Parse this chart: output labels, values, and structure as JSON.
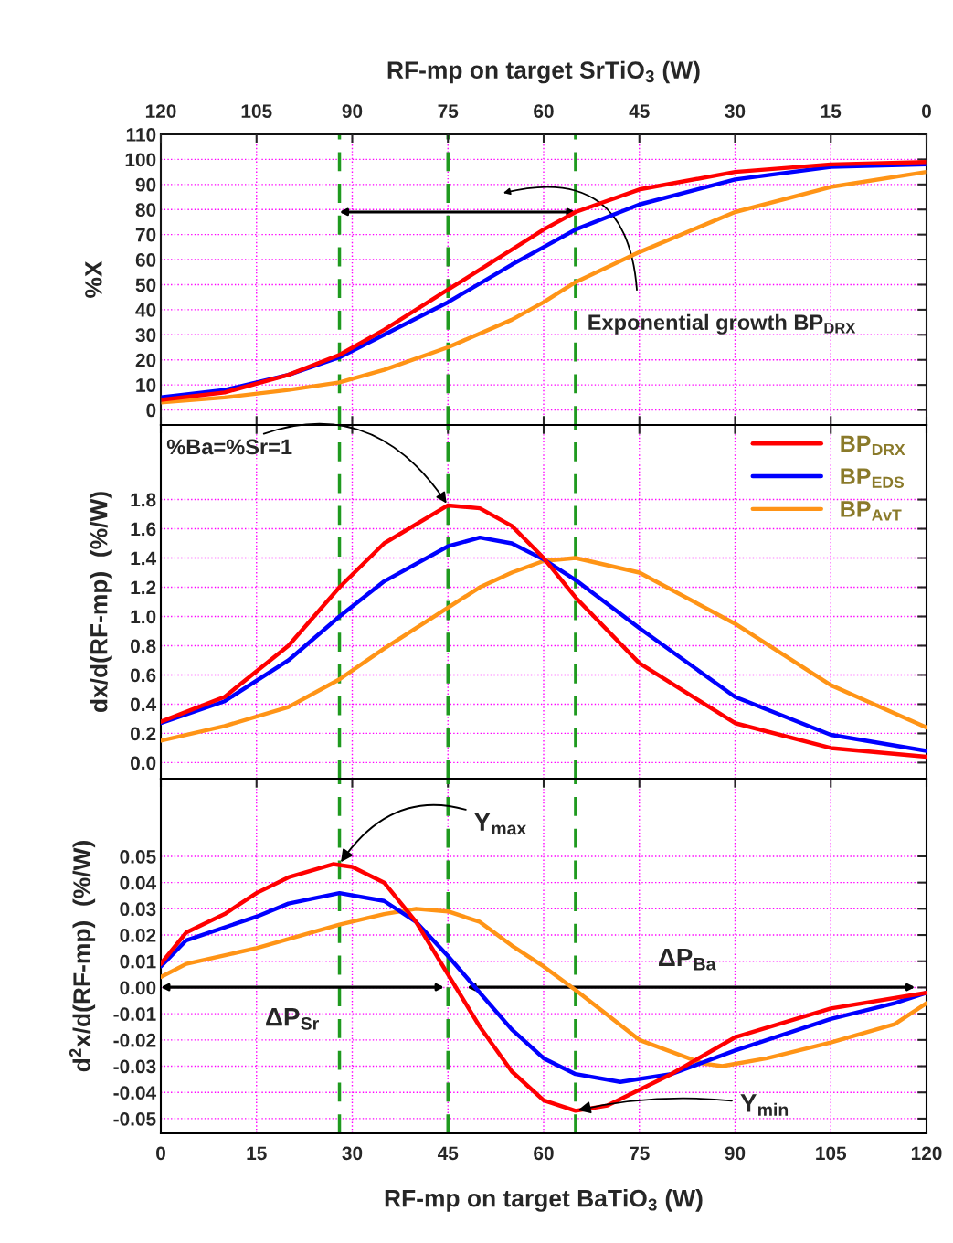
{
  "chart_data": [
    {
      "type": "line",
      "ylabel": "%X",
      "x2label": "RF-mp on target SrTiO$_{3}$ (W)",
      "x": [
        0,
        10,
        20,
        28,
        35,
        45,
        55,
        60,
        65,
        75,
        90,
        105,
        120
      ],
      "series": [
        {
          "color": "#ff0000",
          "values": [
            4,
            7,
            14,
            22,
            32,
            48,
            64,
            72,
            79,
            88,
            95,
            98,
            99
          ]
        },
        {
          "color": "#0000ff",
          "values": [
            5,
            8,
            14,
            21,
            30,
            43,
            58,
            65,
            72,
            82,
            92,
            97,
            98
          ]
        },
        {
          "color": "#ff9416",
          "values": [
            3,
            5,
            8,
            11,
            16,
            25,
            36,
            43,
            51,
            63,
            79,
            89,
            95
          ]
        }
      ],
      "xlim": [
        0,
        120
      ],
      "xticks": [
        0,
        15,
        30,
        45,
        60,
        75,
        90,
        105,
        120
      ],
      "x2lim": [
        120,
        0
      ],
      "x2ticks": [
        120,
        105,
        90,
        75,
        60,
        45,
        30,
        15,
        0
      ],
      "ylim": [
        -6,
        110
      ],
      "yticks": [
        0,
        10,
        20,
        30,
        40,
        50,
        60,
        70,
        80,
        90,
        100,
        110
      ],
      "tick_labels": "y",
      "grid": true,
      "legend": false,
      "ref_lines": [
        {
          "axis": "x",
          "value": 28,
          "color": "#1f9a1f",
          "line_style": "dashed"
        },
        {
          "axis": "x",
          "value": 45,
          "color": "#1f9a1f",
          "line_style": "dashed"
        },
        {
          "axis": "x",
          "value": 65,
          "color": "#1f9a1f",
          "line_style": "dashed"
        }
      ],
      "annotations": [
        "Exponential growth BP$_{DRX}$"
      ]
    },
    {
      "type": "line",
      "ylabel": "dx/d(RF-mp)  (%/W)",
      "x": [
        0,
        10,
        20,
        28,
        35,
        45,
        50,
        55,
        60,
        65,
        75,
        90,
        105,
        120
      ],
      "series": [
        {
          "name": "BP$_{DRX}$",
          "color": "#ff0000",
          "values": [
            0.28,
            0.45,
            0.8,
            1.2,
            1.5,
            1.76,
            1.74,
            1.62,
            1.4,
            1.13,
            0.68,
            0.27,
            0.1,
            0.04
          ]
        },
        {
          "name": "BP$_{EDS}$",
          "color": "#0000ff",
          "values": [
            0.27,
            0.42,
            0.7,
            1.0,
            1.24,
            1.48,
            1.54,
            1.5,
            1.39,
            1.25,
            0.92,
            0.45,
            0.19,
            0.08
          ]
        },
        {
          "name": "BP$_{AvT}$",
          "color": "#ff9416",
          "values": [
            0.15,
            0.25,
            0.38,
            0.57,
            0.78,
            1.06,
            1.2,
            1.3,
            1.38,
            1.4,
            1.3,
            0.95,
            0.53,
            0.24
          ]
        }
      ],
      "xlim": [
        0,
        120
      ],
      "xticks": [
        0,
        15,
        30,
        45,
        60,
        75,
        90,
        105,
        120
      ],
      "ylim": [
        -0.11,
        2.31
      ],
      "yticks": [
        {
          "value": 0.0,
          "label": "0.0"
        },
        0.2,
        0.4,
        0.6,
        0.8,
        {
          "value": 1.0,
          "label": "1.0"
        },
        1.2,
        1.4,
        1.6,
        1.8
      ],
      "tick_labels": "y",
      "grid": true,
      "legend": "top right",
      "ref_lines": [
        {
          "axis": "x",
          "value": 28,
          "color": "#1f9a1f",
          "line_style": "dashed"
        },
        {
          "axis": "x",
          "value": 45,
          "color": "#1f9a1f",
          "line_style": "dashed"
        },
        {
          "axis": "x",
          "value": 65,
          "color": "#1f9a1f",
          "line_style": "dashed"
        }
      ],
      "annotations": [
        {
          "text": "%Ba=%Sr=1",
          "x": 45,
          "y": 1.76
        }
      ]
    },
    {
      "type": "line",
      "ylabel": "d$^{2}$x/d(RF-mp)  (%/W)",
      "xlabel": "RF-mp on target BaTiO$_{3}$ (W)",
      "series": [
        {
          "color": "#ff0000",
          "x": [
            0,
            4,
            10,
            15,
            20,
            27,
            30,
            35,
            40,
            45,
            50,
            55,
            60,
            65,
            70,
            80,
            90,
            105,
            120
          ],
          "values": [
            0.009,
            0.021,
            0.028,
            0.036,
            0.042,
            0.047,
            0.046,
            0.04,
            0.025,
            0.005,
            -0.015,
            -0.032,
            -0.043,
            -0.047,
            -0.045,
            -0.033,
            -0.019,
            -0.008,
            -0.002
          ]
        },
        {
          "color": "#0000ff",
          "x": [
            0,
            4,
            15,
            20,
            28,
            35,
            40,
            45,
            50,
            55,
            60,
            65,
            72,
            80,
            90,
            105,
            115,
            120
          ],
          "values": [
            0.008,
            0.018,
            0.027,
            0.032,
            0.036,
            0.033,
            0.025,
            0.012,
            -0.002,
            -0.016,
            -0.027,
            -0.033,
            -0.036,
            -0.033,
            -0.024,
            -0.012,
            -0.006,
            -0.002
          ]
        },
        {
          "color": "#ff9416",
          "x": [
            0,
            4,
            15,
            28,
            35,
            40,
            45,
            50,
            55,
            60,
            65,
            75,
            85,
            88,
            95,
            105,
            115,
            120
          ],
          "values": [
            0.004,
            0.009,
            0.015,
            0.024,
            0.028,
            0.03,
            0.029,
            0.025,
            0.016,
            0.008,
            -0.001,
            -0.02,
            -0.029,
            -0.03,
            -0.027,
            -0.021,
            -0.014,
            -0.006
          ]
        }
      ],
      "xlim": [
        0,
        120
      ],
      "xticks": [
        0,
        15,
        30,
        45,
        60,
        75,
        90,
        105,
        120
      ],
      "ylim": [
        -0.0556,
        0.0796
      ],
      "yticks": [
        0.05,
        0.04,
        0.03,
        0.02,
        0.01,
        {
          "value": 0.0,
          "label": "0.00"
        },
        {
          "value": -0.01,
          "label": "-0.01"
        },
        {
          "value": -0.02,
          "label": "-0.02"
        },
        {
          "value": -0.03,
          "label": "-0.03"
        },
        {
          "value": -0.04,
          "label": "-0.04"
        },
        {
          "value": -0.05,
          "label": "-0.05"
        }
      ],
      "grid": true,
      "legend": false,
      "ref_lines": [
        {
          "axis": "x",
          "value": 28,
          "color": "#1f9a1f",
          "line_style": "dashed"
        },
        {
          "axis": "x",
          "value": 45,
          "color": "#1f9a1f",
          "line_style": "dashed"
        },
        {
          "axis": "x",
          "value": 65,
          "color": "#1f9a1f",
          "line_style": "dashed"
        }
      ],
      "annotations": [
        {
          "text": "Y$_{max}$",
          "x": 28,
          "y": 0.047
        },
        {
          "text": "Y$_{min}$",
          "x": 65,
          "y": -0.047
        },
        "ΔP$_{Sr}$",
        "ΔP$_{Ba}$"
      ]
    }
  ]
}
